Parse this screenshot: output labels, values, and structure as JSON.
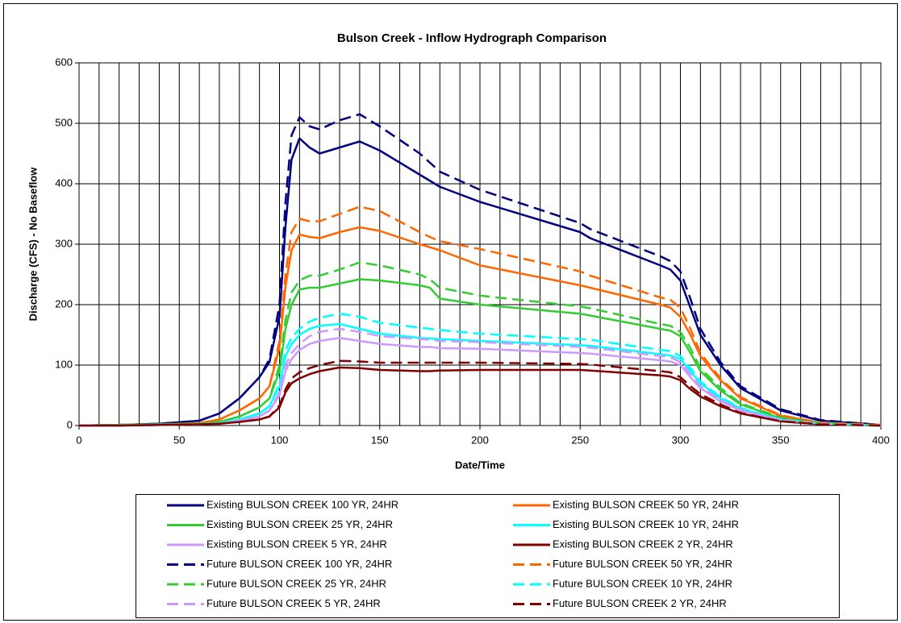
{
  "chart_data": {
    "type": "line",
    "title": "Bulson Creek - Inflow Hydrograph Comparison",
    "x_label": "Date/Time",
    "y_label": "Discharge (CFS) - No Baseflow",
    "x": [
      0,
      20,
      40,
      60,
      70,
      80,
      90,
      95,
      100,
      103,
      106,
      110,
      115,
      120,
      130,
      140,
      150,
      170,
      175,
      180,
      200,
      250,
      255,
      290,
      295,
      300,
      305,
      310,
      320,
      330,
      350,
      370,
      400
    ],
    "xlim": [
      0,
      400
    ],
    "xticks": [
      0,
      50,
      100,
      150,
      200,
      250,
      300,
      350,
      400
    ],
    "xgrid_lines": [
      0,
      10,
      20,
      30,
      40,
      50,
      60,
      70,
      80,
      90,
      100,
      110,
      120,
      130,
      140,
      150,
      160,
      170,
      180,
      190,
      200,
      210,
      220,
      230,
      240,
      250,
      260,
      270,
      280,
      290,
      300,
      310,
      320,
      330,
      340,
      350,
      360,
      370,
      380,
      390,
      400
    ],
    "ylim": [
      0,
      600
    ],
    "yticks": [
      0,
      100,
      200,
      300,
      400,
      500,
      600
    ],
    "grid": true,
    "series": [
      {
        "name": "Existing BULSON CREEK 100 YR, 24HR",
        "color": "#000080",
        "style": "solid",
        "values": [
          0,
          1,
          3,
          8,
          20,
          45,
          80,
          105,
          180,
          330,
          440,
          475,
          460,
          450,
          460,
          470,
          455,
          415,
          405,
          395,
          370,
          320,
          310,
          265,
          258,
          240,
          195,
          150,
          100,
          62,
          25,
          8,
          1
        ]
      },
      {
        "name": "Existing BULSON CREEK 50 YR, 24HR",
        "color": "#FF6600",
        "style": "solid",
        "values": [
          0,
          1,
          2,
          4,
          10,
          25,
          45,
          65,
          130,
          230,
          290,
          316,
          312,
          310,
          320,
          328,
          322,
          300,
          295,
          290,
          265,
          232,
          228,
          200,
          195,
          180,
          150,
          115,
          75,
          45,
          16,
          5,
          1
        ]
      },
      {
        "name": "Existing BULSON CREEK 25 YR, 24HR",
        "color": "#33CC33",
        "style": "solid",
        "values": [
          0,
          1,
          2,
          3,
          6,
          15,
          30,
          45,
          90,
          160,
          200,
          225,
          228,
          228,
          235,
          242,
          240,
          232,
          228,
          210,
          200,
          185,
          182,
          160,
          157,
          148,
          120,
          90,
          58,
          35,
          12,
          4,
          0
        ]
      },
      {
        "name": "Existing BULSON CREEK 10 YR, 24HR",
        "color": "#00FFFF",
        "style": "solid",
        "values": [
          0,
          0,
          1,
          2,
          4,
          10,
          20,
          32,
          65,
          115,
          135,
          150,
          160,
          165,
          168,
          160,
          152,
          145,
          144,
          143,
          140,
          133,
          132,
          118,
          116,
          110,
          90,
          70,
          45,
          28,
          10,
          3,
          0
        ]
      },
      {
        "name": "Existing BULSON CREEK 5 YR, 24HR",
        "color": "#CC99FF",
        "style": "solid",
        "values": [
          0,
          0,
          1,
          2,
          3,
          8,
          15,
          25,
          50,
          90,
          110,
          125,
          135,
          140,
          145,
          140,
          135,
          130,
          130,
          128,
          127,
          120,
          119,
          108,
          106,
          100,
          80,
          62,
          40,
          25,
          9,
          3,
          0
        ]
      },
      {
        "name": "Existing BULSON CREEK 2 YR, 24HR",
        "color": "#800000",
        "style": "solid",
        "values": [
          0,
          0,
          1,
          2,
          3,
          6,
          10,
          15,
          30,
          55,
          70,
          78,
          85,
          90,
          96,
          95,
          92,
          90,
          90,
          91,
          92,
          92,
          91,
          83,
          81,
          75,
          60,
          48,
          32,
          20,
          7,
          2,
          0
        ]
      },
      {
        "name": "Future BULSON CREEK 100 YR, 24HR",
        "color": "#000080",
        "style": "dashed",
        "values": [
          0,
          1,
          3,
          8,
          20,
          45,
          80,
          110,
          200,
          370,
          480,
          510,
          495,
          490,
          505,
          515,
          495,
          450,
          435,
          420,
          390,
          335,
          325,
          280,
          272,
          255,
          210,
          160,
          105,
          65,
          27,
          9,
          1
        ]
      },
      {
        "name": "Future BULSON CREEK 50 YR, 24HR",
        "color": "#FF6600",
        "style": "dashed",
        "values": [
          0,
          1,
          2,
          4,
          10,
          25,
          45,
          65,
          140,
          250,
          320,
          342,
          338,
          338,
          350,
          362,
          355,
          320,
          312,
          305,
          292,
          255,
          248,
          212,
          208,
          195,
          160,
          120,
          78,
          47,
          17,
          5,
          1
        ]
      },
      {
        "name": "Future BULSON CREEK 25 YR, 24HR",
        "color": "#33CC33",
        "style": "dashed",
        "values": [
          0,
          1,
          2,
          3,
          6,
          15,
          30,
          45,
          100,
          175,
          220,
          240,
          248,
          248,
          258,
          270,
          265,
          250,
          242,
          228,
          215,
          197,
          194,
          168,
          165,
          155,
          128,
          95,
          62,
          37,
          13,
          4,
          0
        ]
      },
      {
        "name": "Future BULSON CREEK 10 YR, 24HR",
        "color": "#00FFFF",
        "style": "dashed",
        "values": [
          0,
          0,
          1,
          2,
          4,
          10,
          20,
          32,
          70,
          125,
          145,
          160,
          172,
          178,
          185,
          180,
          170,
          162,
          160,
          158,
          152,
          143,
          142,
          125,
          123,
          115,
          95,
          73,
          47,
          29,
          10,
          3,
          0
        ]
      },
      {
        "name": "Future BULSON CREEK 5 YR, 24HR",
        "color": "#CC99FF",
        "style": "dashed",
        "values": [
          0,
          0,
          1,
          2,
          3,
          8,
          15,
          25,
          55,
          100,
          120,
          135,
          148,
          155,
          160,
          155,
          148,
          143,
          142,
          140,
          138,
          130,
          129,
          115,
          113,
          105,
          85,
          65,
          42,
          26,
          9,
          3,
          0
        ]
      },
      {
        "name": "Future BULSON CREEK 2 YR, 24HR",
        "color": "#800000",
        "style": "dashed",
        "values": [
          0,
          0,
          1,
          2,
          3,
          6,
          10,
          15,
          33,
          60,
          78,
          88,
          95,
          100,
          107,
          106,
          104,
          104,
          104,
          104,
          104,
          102,
          101,
          90,
          88,
          80,
          65,
          52,
          35,
          21,
          7,
          2,
          0
        ]
      }
    ]
  }
}
